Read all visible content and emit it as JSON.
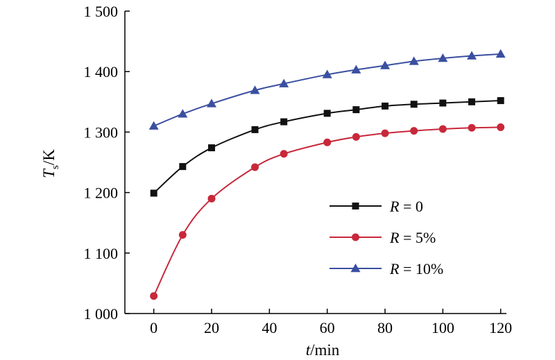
{
  "chart_data": {
    "type": "line",
    "xlabel_italic": "t",
    "xlabel_rest": "/min",
    "ylabel_main": "T",
    "ylabel_sub": "s",
    "ylabel_rest": "/K",
    "xlim": [
      -10,
      122
    ],
    "ylim": [
      1000,
      1500
    ],
    "xticks": [
      0,
      20,
      40,
      60,
      80,
      100,
      120
    ],
    "xtick_labels": [
      "0",
      "20",
      "40",
      "60",
      "80",
      "100",
      "120"
    ],
    "yticks": [
      1000,
      1100,
      1200,
      1300,
      1400,
      1500
    ],
    "ytick_labels": [
      "1 000",
      "1 100",
      "1 200",
      "1 300",
      "1 400",
      "1 500"
    ],
    "grid": false,
    "legend_position": "center-right",
    "x": [
      0,
      10,
      20,
      35,
      45,
      60,
      70,
      80,
      90,
      100,
      110,
      120
    ],
    "series": [
      {
        "name_var": "R",
        "name_rest": " = 0",
        "marker": "square",
        "color": "#111111",
        "values": [
          1199,
          1243,
          1274,
          1304,
          1317,
          1331,
          1337,
          1343,
          1346,
          1348,
          1350,
          1352
        ]
      },
      {
        "name_var": "R",
        "name_rest": " = 5%",
        "marker": "circle",
        "color": "#c8283a",
        "values": [
          1029,
          1130,
          1190,
          1242,
          1264,
          1283,
          1292,
          1298,
          1302,
          1305,
          1307,
          1308
        ]
      },
      {
        "name_var": "R",
        "name_rest": " = 10%",
        "marker": "triangle",
        "color": "#3a4fa0",
        "values": [
          1310,
          1330,
          1347,
          1369,
          1380,
          1395,
          1403,
          1410,
          1417,
          1422,
          1426,
          1429
        ]
      }
    ]
  }
}
